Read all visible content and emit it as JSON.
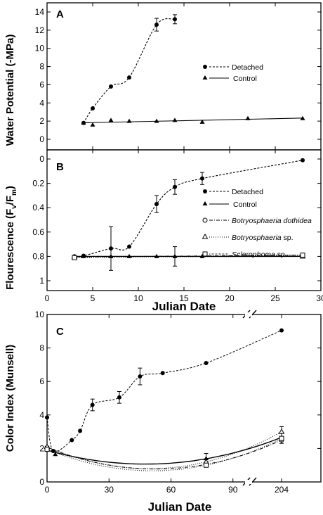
{
  "chart_data": [
    {
      "panel": "A",
      "type": "line",
      "ylabel": "Water  Potential  (-MPa)",
      "xlim": [
        0,
        30
      ],
      "ylim": [
        0,
        14
      ],
      "yticks": [
        0,
        2,
        4,
        6,
        8,
        10,
        12,
        14
      ],
      "xticks": [
        0,
        5,
        10,
        15,
        20,
        25,
        30
      ],
      "legend_position": "right",
      "series": [
        {
          "name": "Detached",
          "marker": "filled-circle",
          "style": "dashed",
          "x": [
            4,
            5,
            7,
            9,
            12,
            14
          ],
          "y": [
            1.8,
            3.4,
            5.8,
            6.8,
            12.6,
            13.2
          ],
          "err": [
            0,
            0,
            0,
            0,
            0.7,
            0.5
          ]
        },
        {
          "name": "Control",
          "marker": "filled-triangle",
          "style": "solid",
          "x": [
            4,
            5,
            7,
            9,
            12,
            14,
            17,
            22,
            28
          ],
          "y": [
            1.8,
            1.6,
            2.1,
            2.0,
            2.0,
            2.1,
            1.9,
            2.3,
            2.3
          ],
          "err": [
            0,
            0,
            0,
            0,
            0,
            0,
            0,
            0,
            0
          ]
        }
      ]
    },
    {
      "panel": "B",
      "type": "line",
      "ylabel_main": "Flourescence (F",
      "ylabel_sub1": "v",
      "ylabel_mid": "/F",
      "ylabel_sub2": "m",
      "ylabel_end": ")",
      "xlabel": "Julian Date",
      "xlim": [
        0,
        30
      ],
      "ylim": [
        0,
        1
      ],
      "y_inverted": true,
      "yticks": [
        0,
        0.2,
        0.4,
        0.6,
        0.8,
        1
      ],
      "yticklabels": [
        "0",
        "0.2",
        "0.4",
        "0.6",
        "0.8",
        "1"
      ],
      "xticks": [
        0,
        5,
        10,
        15,
        20,
        25,
        30
      ],
      "legend_position": "right",
      "series": [
        {
          "name": "Detached",
          "marker": "filled-circle",
          "style": "dashed",
          "x": [
            3,
            4,
            7,
            9,
            12,
            14,
            17,
            28
          ],
          "y": [
            0.8,
            0.795,
            0.735,
            0.72,
            0.37,
            0.23,
            0.16,
            0.01
          ],
          "err": [
            0,
            0,
            0.18,
            0,
            0.07,
            0.06,
            0.05,
            0
          ]
        },
        {
          "name": "Control",
          "marker": "filled-triangle",
          "style": "solid",
          "x": [
            3,
            4,
            7,
            9,
            12,
            14,
            17,
            28
          ],
          "y": [
            0.8,
            0.8,
            0.8,
            0.8,
            0.8,
            0.8,
            0.8,
            0.8
          ],
          "err": [
            0,
            0,
            0,
            0,
            0,
            0.08,
            0,
            0
          ]
        },
        {
          "name": "Botryosphaeria dothidea",
          "marker": "open-circle",
          "style": "dashdot",
          "x": [
            3,
            28
          ],
          "y": [
            0.805,
            0.79
          ],
          "err": [
            0,
            0
          ]
        },
        {
          "name": "Botryosphaeria sp.",
          "marker": "open-triangle",
          "style": "dotted",
          "x": [
            3,
            28
          ],
          "y": [
            0.805,
            0.8
          ],
          "err": [
            0,
            0
          ]
        },
        {
          "name": "Sclerophoma sp.",
          "marker": "open-square",
          "style": "dotted",
          "x": [
            3,
            28
          ],
          "y": [
            0.81,
            0.79
          ],
          "err": [
            0,
            0
          ]
        }
      ],
      "legend_names": {
        "dothidea_italic": "Botryosphaeria dothidea",
        "botry_sp_italic": "Botryosphaeria",
        "botry_sp_plain": " sp.",
        "scler_italic": "Sclerophoma",
        "scler_plain": " sp."
      }
    },
    {
      "panel": "C",
      "type": "line",
      "ylabel": "Color Index (Munsell)",
      "xlabel": "Julian Date",
      "ylim": [
        0,
        10
      ],
      "yticks": [
        0,
        2,
        4,
        6,
        8,
        10
      ],
      "xticklabels": [
        "0",
        "30",
        "60",
        "90",
        "204"
      ],
      "axis_break": "between 90 and 204",
      "series": [
        {
          "name": "Detached",
          "marker": "filled-circle",
          "style": "dashed",
          "x": [
            0,
            3,
            12,
            16,
            22,
            35,
            45,
            56,
            77,
            204
          ],
          "y": [
            3.85,
            1.85,
            2.5,
            3.05,
            4.6,
            5.05,
            6.3,
            6.5,
            7.1,
            9.05
          ],
          "err": [
            0,
            0,
            0,
            0,
            0.35,
            0.35,
            0.5,
            0,
            0,
            0
          ]
        },
        {
          "name": "Control",
          "marker": "filled-triangle",
          "style": "solid",
          "x": [
            0,
            4,
            77,
            204
          ],
          "y": [
            2.0,
            1.65,
            1.4,
            2.65
          ],
          "err": [
            0,
            0,
            0.3,
            0
          ]
        },
        {
          "name": "Botryosphaeria dothidea",
          "marker": "open-circle",
          "style": "dashdot",
          "x": [
            0,
            77,
            204
          ],
          "y": [
            2.05,
            1.05,
            2.5
          ],
          "err": [
            0,
            0,
            0
          ]
        },
        {
          "name": "Botryosphaeria sp.",
          "marker": "open-triangle",
          "style": "dotted",
          "x": [
            0,
            77,
            204
          ],
          "y": [
            2.1,
            1.2,
            3.0
          ],
          "err": [
            0,
            0,
            0.3
          ]
        },
        {
          "name": "Sclerophoma sp.",
          "marker": "open-square",
          "style": "dotted",
          "x": [
            0,
            77,
            204
          ],
          "y": [
            1.95,
            1.0,
            2.6
          ],
          "err": [
            0,
            0,
            0.3
          ]
        }
      ]
    }
  ]
}
